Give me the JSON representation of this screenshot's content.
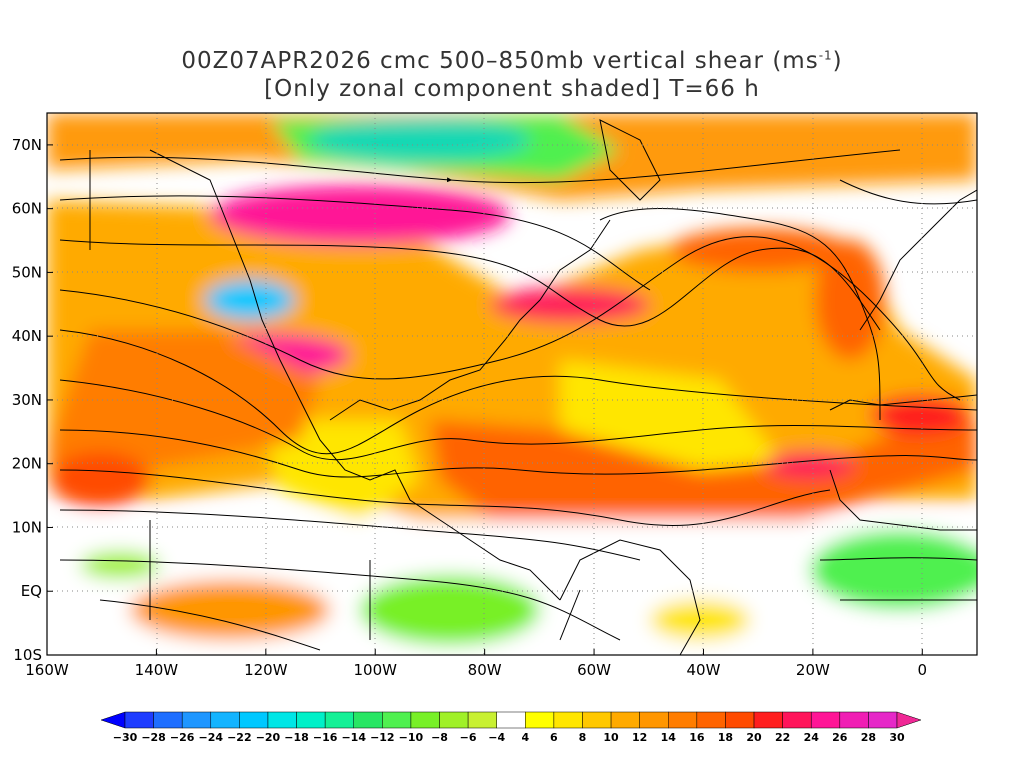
{
  "title": {
    "line1_prefix": "00Z07APR2026 cmc 500–850mb vertical shear (ms",
    "line1_sup": "-1",
    "line1_suffix": ")",
    "line2": "[Only zonal component shaded] T=66 h"
  },
  "map": {
    "lon_range": [
      -160,
      10
    ],
    "lat_range": [
      -10,
      75
    ],
    "lon_ticks": [
      {
        "value": -160,
        "label": "160W"
      },
      {
        "value": -140,
        "label": "140W"
      },
      {
        "value": -120,
        "label": "120W"
      },
      {
        "value": -100,
        "label": "100W"
      },
      {
        "value": -80,
        "label": "80W"
      },
      {
        "value": -60,
        "label": "60W"
      },
      {
        "value": -40,
        "label": "40W"
      },
      {
        "value": -20,
        "label": "20W"
      },
      {
        "value": 0,
        "label": "0"
      }
    ],
    "lat_ticks": [
      {
        "value": 70,
        "label": "70N"
      },
      {
        "value": 60,
        "label": "60N"
      },
      {
        "value": 50,
        "label": "50N"
      },
      {
        "value": 40,
        "label": "40N"
      },
      {
        "value": 30,
        "label": "30N"
      },
      {
        "value": 20,
        "label": "20N"
      },
      {
        "value": 10,
        "label": "10N"
      },
      {
        "value": 0,
        "label": "EQ"
      },
      {
        "value": -10,
        "label": "10S"
      }
    ]
  },
  "colorbar": {
    "levels": [
      -30,
      -28,
      -26,
      -24,
      -22,
      -20,
      -18,
      -16,
      -14,
      -12,
      -10,
      -8,
      -6,
      -4,
      4,
      6,
      8,
      10,
      12,
      14,
      16,
      18,
      20,
      22,
      24,
      26,
      28,
      30
    ],
    "labels": [
      "−30",
      "−28",
      "−26",
      "−24",
      "−22",
      "−20",
      "−18",
      "−16",
      "−14",
      "−12",
      "−10",
      "−8",
      "−6",
      "−4",
      "4",
      "6",
      "8",
      "10",
      "12",
      "14",
      "16",
      "18",
      "20",
      "22",
      "24",
      "26",
      "28",
      "30"
    ],
    "colors": [
      "#1e3cff",
      "#1e6eff",
      "#1e96ff",
      "#14b4ff",
      "#00c8ff",
      "#00e6e6",
      "#00f0c8",
      "#14f096",
      "#28e664",
      "#50f050",
      "#78f028",
      "#a0f028",
      "#c8f032",
      "#ffffff",
      "#ffff00",
      "#ffe600",
      "#ffc800",
      "#ffaa00",
      "#ff9600",
      "#ff7d00",
      "#ff6400",
      "#ff4b00",
      "#ff1e1e",
      "#ff145a",
      "#ff1496",
      "#f01eb4",
      "#e628c8"
    ],
    "low_color": "#0000ff",
    "high_color": "#f02896"
  }
}
